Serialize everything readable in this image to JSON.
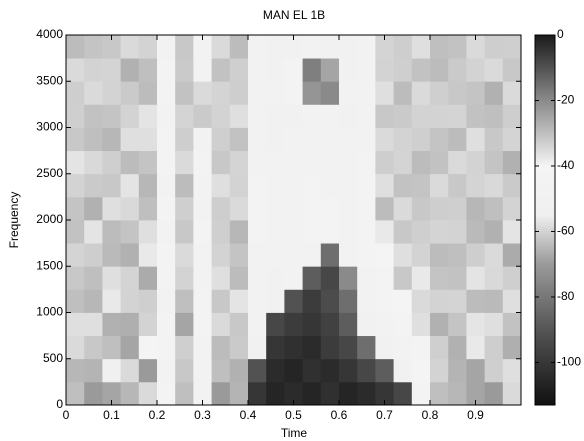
{
  "chart_data": {
    "type": "heatmap",
    "title": "MAN EL 1B",
    "x_label": "Time",
    "y_label": "Frequency",
    "xlim": [
      0,
      1
    ],
    "ylim": [
      0,
      4000
    ],
    "xticks": [
      0,
      0.1,
      0.2,
      0.3,
      0.4,
      0.5,
      0.6,
      0.7,
      0.8,
      0.9
    ],
    "yticks": [
      0,
      500,
      1000,
      1500,
      2000,
      2500,
      3000,
      3500,
      4000
    ],
    "x_edges": [
      0,
      0.04,
      0.08,
      0.12,
      0.16,
      0.2,
      0.24,
      0.28,
      0.32,
      0.36,
      0.4,
      0.44,
      0.48,
      0.52,
      0.56,
      0.6,
      0.64,
      0.68,
      0.72,
      0.76,
      0.8,
      0.84,
      0.88,
      0.92,
      0.96,
      1
    ],
    "y_edges": [
      0,
      250,
      500,
      750,
      1000,
      1250,
      1500,
      1750,
      2000,
      2250,
      2500,
      2750,
      3000,
      3250,
      3500,
      3750,
      4000
    ],
    "z": [
      [
        -30,
        -70,
        -25,
        -65,
        -35,
        -45,
        -30,
        -48,
        -70,
        -28,
        -5,
        -2,
        -3,
        -2,
        -4,
        -2,
        -3,
        -5,
        -8,
        -45,
        -30,
        -65,
        -25,
        -70,
        -35
      ],
      [
        -65,
        -28,
        -55,
        -35,
        -70,
        -46,
        -62,
        -47,
        -30,
        -66,
        -10,
        -3,
        -2,
        -4,
        -3,
        -5,
        -8,
        -12,
        -50,
        -40,
        -60,
        -28,
        -68,
        -33,
        -58
      ],
      [
        -35,
        -62,
        -30,
        -68,
        -40,
        -45,
        -33,
        -46,
        -64,
        -32,
        -50,
        -5,
        -4,
        -3,
        -6,
        -8,
        -15,
        -50,
        -48,
        -42,
        -33,
        -66,
        -38,
        -61,
        -27
      ],
      [
        -58,
        -36,
        -66,
        -27,
        -60,
        -44,
        -68,
        -45,
        -35,
        -62,
        -48,
        -8,
        -6,
        -5,
        -7,
        -12,
        -50,
        -47,
        -44,
        -58,
        -66,
        -31,
        -57,
        -36,
        -63
      ],
      [
        -30,
        -65,
        -38,
        -60,
        -33,
        -48,
        -30,
        -44,
        -62,
        -37,
        -47,
        -52,
        -10,
        -6,
        -9,
        -15,
        -48,
        -45,
        -40,
        -35,
        -60,
        -34,
        -64,
        -29,
        -58
      ],
      [
        -62,
        -30,
        -58,
        -34,
        -67,
        -45,
        -60,
        -46,
        -36,
        -64,
        -46,
        -50,
        -49,
        -12,
        -8,
        -20,
        -47,
        -44,
        -62,
        -38,
        -31,
        -63,
        -37,
        -59,
        -33
      ],
      [
        -34,
        -61,
        -29,
        -66,
        -38,
        -44,
        -35,
        -47,
        -60,
        -31,
        -47,
        -49,
        -48,
        -46,
        -15,
        -48,
        -45,
        -40,
        -36,
        -60,
        -64,
        -30,
        -61,
        -35,
        -67
      ],
      [
        -63,
        -37,
        -64,
        -31,
        -58,
        -46,
        -62,
        -45,
        -33,
        -65,
        -45,
        -48,
        -47,
        -45,
        -44,
        -47,
        -42,
        -38,
        -62,
        -33,
        -34,
        -60,
        -29,
        -66,
        -37
      ],
      [
        -31,
        -66,
        -36,
        -59,
        -30,
        -45,
        -33,
        -47,
        -61,
        -35,
        -44,
        -47,
        -46,
        -44,
        -45,
        -46,
        -43,
        -64,
        -35,
        -62,
        -61,
        -33,
        -65,
        -30,
        -60
      ],
      [
        -60,
        -32,
        -62,
        -37,
        -65,
        -46,
        -64,
        -46,
        -36,
        -60,
        -45,
        -48,
        -47,
        -45,
        -46,
        -47,
        -44,
        -36,
        -63,
        -31,
        -35,
        -62,
        -34,
        -59,
        -32
      ],
      [
        -37,
        -59,
        -33,
        -64,
        -31,
        -45,
        -35,
        -44,
        -62,
        -34,
        -46,
        -49,
        -48,
        -46,
        -47,
        -48,
        -45,
        -61,
        -34,
        -64,
        -63,
        -35,
        -60,
        -31,
        -66
      ],
      [
        -62,
        -30,
        -65,
        -36,
        -58,
        -44,
        -61,
        -47,
        -33,
        -63,
        -47,
        -50,
        -49,
        -47,
        -48,
        -49,
        -46,
        -35,
        -60,
        -33,
        -31,
        -64,
        -36,
        -62,
        -34
      ],
      [
        -33,
        -63,
        -31,
        -60,
        -37,
        -46,
        -34,
        -32,
        -60,
        -36,
        -48,
        -50,
        -50,
        -47,
        -48,
        -50,
        -47,
        -62,
        -32,
        -60,
        -60,
        -34,
        -63,
        -30,
        -61
      ],
      [
        -61,
        -35,
        -60,
        -32,
        -64,
        -45,
        -63,
        -35,
        -34,
        -61,
        -48,
        -49,
        -45,
        -22,
        -20,
        -49,
        -47,
        -36,
        -64,
        -35,
        -33,
        -62,
        -31,
        -66,
        -35
      ],
      [
        -35,
        -60,
        -34,
        -66,
        -30,
        -44,
        -32,
        -46,
        -63,
        -33,
        -49,
        -50,
        -42,
        -18,
        -25,
        -50,
        -48,
        -60,
        -33,
        -63,
        -64,
        -32,
        -60,
        -35,
        -62
      ],
      [
        -64,
        -31,
        -62,
        -35,
        -60,
        -46,
        -62,
        -46,
        -35,
        -64,
        -49,
        -50,
        -50,
        -49,
        -50,
        -50,
        -47,
        -34,
        -61,
        -36,
        -30,
        -63,
        -35,
        -61,
        -33
      ]
    ],
    "clim": [
      -113,
      0
    ],
    "cticks": [
      0,
      -20,
      -40,
      -60,
      -80,
      -100
    ],
    "colormap": [
      {
        "value": 0,
        "color": "#1a1a1a"
      },
      {
        "value": -20,
        "color": "#8a8a8a"
      },
      {
        "value": -40,
        "color": "#f4f4f4"
      },
      {
        "value": -55,
        "color": "#f0f0f0"
      },
      {
        "value": -70,
        "color": "#9a9a9a"
      },
      {
        "value": -90,
        "color": "#555555"
      },
      {
        "value": -113,
        "color": "#111111"
      }
    ]
  }
}
